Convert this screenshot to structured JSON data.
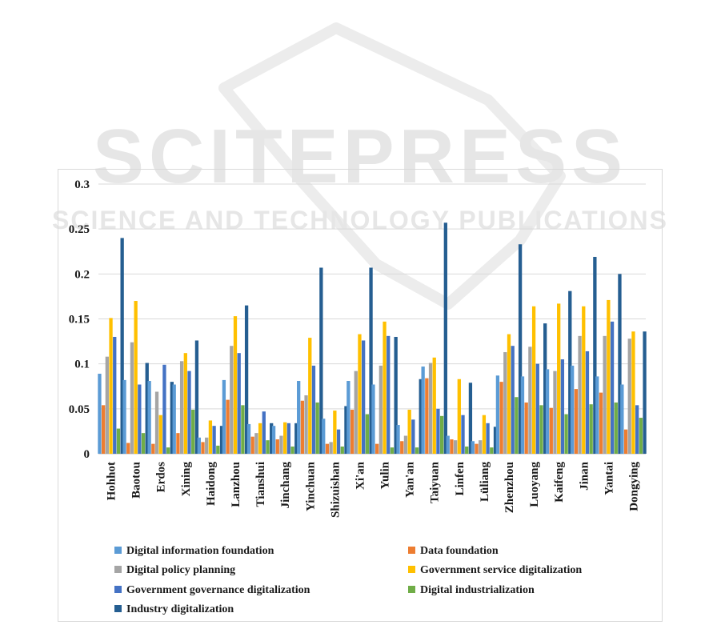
{
  "watermark": {
    "main": "SCITEPRESS",
    "sub": "SCIENCE AND TECHNOLOGY PUBLICATIONS"
  },
  "chart_data": {
    "type": "bar",
    "title": "",
    "xlabel": "",
    "ylabel": "",
    "ylim": [
      0,
      0.3
    ],
    "yticks": [
      "0",
      "0.05",
      "0.1",
      "0.15",
      "0.2",
      "0.25",
      "0.3"
    ],
    "grid": true,
    "legend_position": "bottom",
    "categories": [
      "Hohhot",
      "Baotou",
      "Erdos",
      "Xining",
      "Haidong",
      "Lanzhou",
      "Tianshui",
      "Jinchang",
      "Yinchuan",
      "Shizuishan",
      "Xi'an",
      "Yulin",
      "Yan'an",
      "Taiyuan",
      "Linfen",
      "Lüliang",
      "Zhenzhou",
      "Luoyang",
      "Kaifeng",
      "Jinan",
      "Yantai",
      "Dongying"
    ],
    "series": [
      {
        "name": "Digital information foundation",
        "color": "#5b9bd5",
        "values": [
          0.089,
          0.082,
          0.081,
          0.077,
          0.018,
          0.082,
          0.033,
          0.031,
          0.081,
          0.039,
          0.081,
          0.077,
          0.032,
          0.097,
          0.02,
          0.014,
          0.087,
          0.086,
          0.094,
          0.098,
          0.086,
          0.077
        ]
      },
      {
        "name": "Data foundation",
        "color": "#ed7d31",
        "values": [
          0.054,
          0.012,
          0.011,
          0.023,
          0.013,
          0.06,
          0.019,
          0.016,
          0.059,
          0.011,
          0.049,
          0.011,
          0.014,
          0.084,
          0.016,
          0.011,
          0.08,
          0.057,
          0.051,
          0.072,
          0.068,
          0.027
        ]
      },
      {
        "name": "Digital policy planning",
        "color": "#a5a5a5",
        "values": [
          0.108,
          0.124,
          0.069,
          0.103,
          0.018,
          0.12,
          0.023,
          0.02,
          0.065,
          0.013,
          0.092,
          0.098,
          0.02,
          0.101,
          0.015,
          0.015,
          0.113,
          0.119,
          0.092,
          0.131,
          0.131,
          0.128
        ]
      },
      {
        "name": "Government service digitalization",
        "color": "#ffc000",
        "values": [
          0.151,
          0.17,
          0.043,
          0.112,
          0.037,
          0.153,
          0.034,
          0.035,
          0.129,
          0.048,
          0.133,
          0.147,
          0.049,
          0.107,
          0.083,
          0.043,
          0.133,
          0.164,
          0.167,
          0.164,
          0.171,
          0.136
        ]
      },
      {
        "name": "Government governance digitalization",
        "color": "#4472c4",
        "values": [
          0.13,
          0.077,
          0.099,
          0.092,
          0.031,
          0.112,
          0.047,
          0.034,
          0.098,
          0.027,
          0.126,
          0.131,
          0.038,
          0.05,
          0.043,
          0.034,
          0.12,
          0.1,
          0.105,
          0.114,
          0.147,
          0.054
        ]
      },
      {
        "name": "Digital industrialization",
        "color": "#70ad47",
        "values": [
          0.028,
          0.023,
          0.007,
          0.049,
          0.009,
          0.054,
          0.015,
          0.008,
          0.057,
          0.008,
          0.044,
          0.007,
          0.007,
          0.042,
          0.008,
          0.007,
          0.063,
          0.054,
          0.044,
          0.055,
          0.057,
          0.04
        ]
      },
      {
        "name": "Industry digitalization",
        "color": "#255e91",
        "values": [
          0.24,
          0.101,
          0.08,
          0.126,
          0.031,
          0.165,
          0.034,
          0.034,
          0.207,
          0.053,
          0.207,
          0.13,
          0.083,
          0.257,
          0.079,
          0.03,
          0.233,
          0.145,
          0.181,
          0.219,
          0.2,
          0.136
        ]
      }
    ]
  }
}
